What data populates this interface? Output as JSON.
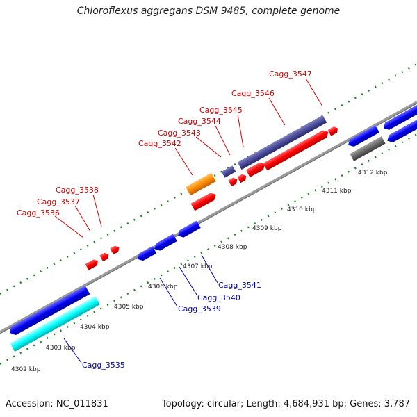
{
  "title": "Chloroflexus aggregans DSM 9485, complete genome",
  "footer": {
    "accession": "Accession: NC_011831",
    "topology": "Topology: circular; Length: 4,684,931 bp; Genes: 3,787"
  },
  "ticks": [
    "4302 kbp",
    "4303 kbp",
    "4304 kbp",
    "4305 kbp",
    "4306 kbp",
    "4307 kbp",
    "4308 kbp",
    "4309 kbp",
    "4310 kbp",
    "4311 kbp",
    "4312 kbp"
  ],
  "forward_genes": [
    "Cagg_3536",
    "Cagg_3537",
    "Cagg_3538",
    "Cagg_3542",
    "Cagg_3543",
    "Cagg_3544",
    "Cagg_3545",
    "Cagg_3546",
    "Cagg_3547"
  ],
  "reverse_genes": [
    "Cagg_3535",
    "Cagg_3539",
    "Cagg_3540",
    "Cagg_3541"
  ],
  "colors": {
    "forward_cds": "#ff0000",
    "reverse_cds": "#0000ee",
    "rna": "#00ffff",
    "orange_feature": "#ff8c00",
    "purple_feature": "#4a4a9a",
    "grey_feature": "#6a6a6a",
    "backbone": "#999999",
    "tick": "#1a8a1a"
  }
}
